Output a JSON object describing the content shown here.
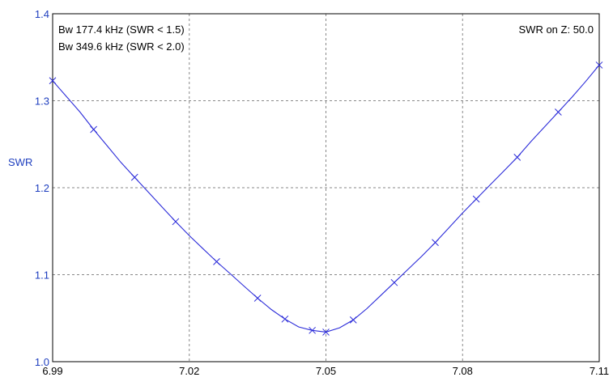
{
  "chart_data": {
    "type": "line",
    "title": "",
    "xlabel": "",
    "ylabel": "SWR",
    "xlim": [
      6.99,
      7.11
    ],
    "ylim": [
      1.0,
      1.4
    ],
    "x_ticks": [
      6.99,
      7.02,
      7.05,
      7.08,
      7.11
    ],
    "x_tick_labels": [
      "6.99",
      "7.02",
      "7.05",
      "7.08",
      "7.11"
    ],
    "y_ticks": [
      1.0,
      1.1,
      1.2,
      1.3,
      1.4
    ],
    "y_tick_labels": [
      "1.0",
      "1.1",
      "1.2",
      "1.3",
      "1.4"
    ],
    "grid": true,
    "series": [
      {
        "color": "#2b2bd9",
        "marker": "x",
        "x": [
          6.99,
          6.993,
          6.996,
          6.999,
          7.002,
          7.005,
          7.008,
          7.011,
          7.014,
          7.017,
          7.02,
          7.023,
          7.026,
          7.029,
          7.032,
          7.035,
          7.038,
          7.041,
          7.044,
          7.047,
          7.05,
          7.053,
          7.056,
          7.059,
          7.062,
          7.065,
          7.068,
          7.071,
          7.074,
          7.077,
          7.08,
          7.083,
          7.086,
          7.089,
          7.092,
          7.095,
          7.098,
          7.101,
          7.104,
          7.107,
          7.11
        ],
        "y": [
          1.323,
          1.305,
          1.287,
          1.267,
          1.248,
          1.229,
          1.212,
          1.195,
          1.178,
          1.161,
          1.145,
          1.13,
          1.115,
          1.101,
          1.087,
          1.073,
          1.06,
          1.049,
          1.04,
          1.036,
          1.034,
          1.039,
          1.048,
          1.061,
          1.076,
          1.091,
          1.106,
          1.121,
          1.137,
          1.154,
          1.171,
          1.187,
          1.203,
          1.219,
          1.235,
          1.253,
          1.27,
          1.287,
          1.304,
          1.322,
          1.341
        ],
        "marker_indices": [
          0,
          3,
          6,
          9,
          12,
          15,
          17,
          19,
          20,
          22,
          25,
          28,
          31,
          34,
          37,
          40
        ]
      }
    ],
    "annotations": {
      "bw1": "Bw 177.4 kHz (SWR < 1.5)",
      "bw2": "Bw 349.6 kHz (SWR < 2.0)",
      "swr_z": "SWR on Z: 50.0"
    },
    "colors": {
      "line": "#2b2bd9",
      "ytick_text": "#1f3fbf",
      "grid": "#888888",
      "frame": "#000000"
    }
  }
}
